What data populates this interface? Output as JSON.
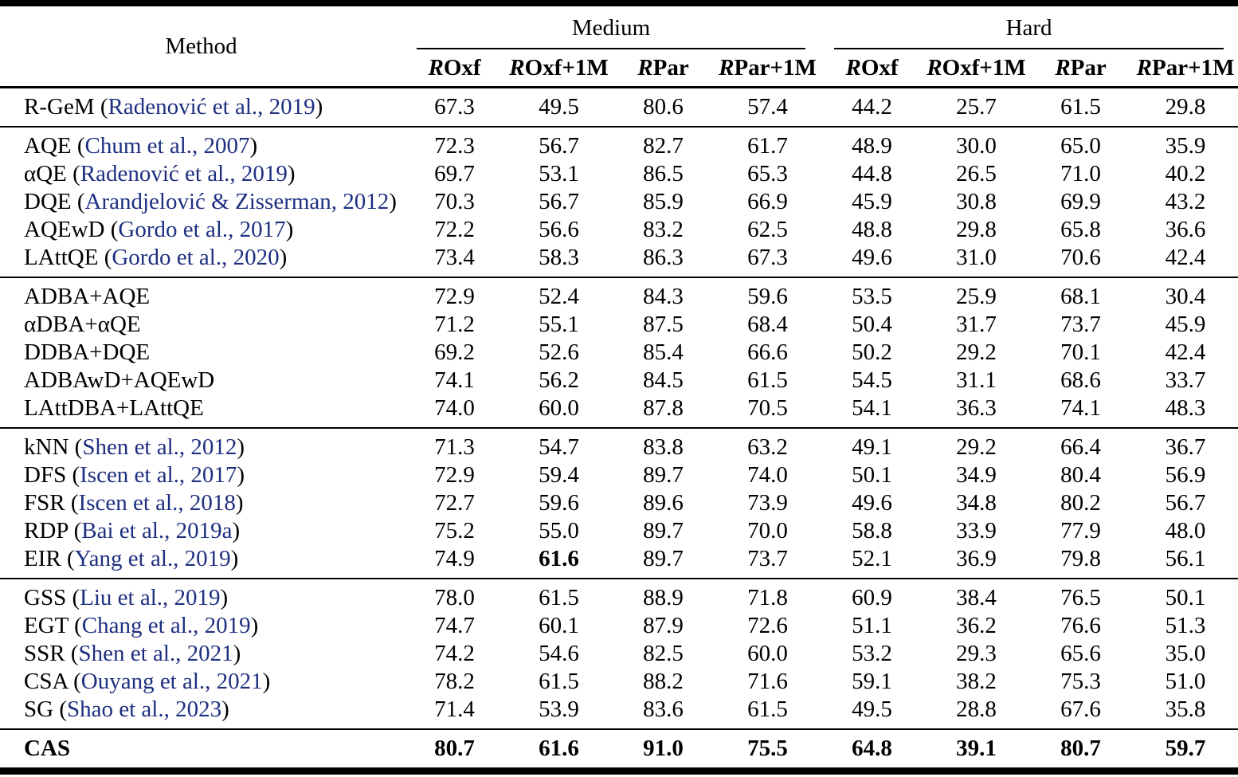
{
  "colors": {
    "text": "#000000",
    "citation_link": "#1e2f80",
    "background": "#ffffff",
    "rules": "#000000"
  },
  "table": {
    "header": {
      "method_label": "Method",
      "groups": [
        {
          "label": "Medium",
          "columns": [
            "ROxf",
            "ROxf+1M",
            "RPar",
            "RPar+1M"
          ]
        },
        {
          "label": "Hard",
          "columns": [
            "ROxf",
            "ROxf+1M",
            "RPar",
            "RPar+1M"
          ]
        }
      ]
    },
    "body_groups": [
      {
        "rows": [
          {
            "method": "R-GeM",
            "citation": "Radenović et al., 2019",
            "values": [
              "67.3",
              "49.5",
              "80.6",
              "57.4",
              "44.2",
              "25.7",
              "61.5",
              "29.8"
            ]
          }
        ]
      },
      {
        "rows": [
          {
            "method": "AQE",
            "citation": "Chum et al., 2007",
            "values": [
              "72.3",
              "56.7",
              "82.7",
              "61.7",
              "48.9",
              "30.0",
              "65.0",
              "35.9"
            ]
          },
          {
            "method": "αQE",
            "citation": "Radenović et al., 2019",
            "values": [
              "69.7",
              "53.1",
              "86.5",
              "65.3",
              "44.8",
              "26.5",
              "71.0",
              "40.2"
            ]
          },
          {
            "method": "DQE",
            "citation": "Arandjelović & Zisserman, 2012",
            "values": [
              "70.3",
              "56.7",
              "85.9",
              "66.9",
              "45.9",
              "30.8",
              "69.9",
              "43.2"
            ]
          },
          {
            "method": "AQEwD",
            "citation": "Gordo et al., 2017",
            "values": [
              "72.2",
              "56.6",
              "83.2",
              "62.5",
              "48.8",
              "29.8",
              "65.8",
              "36.6"
            ]
          },
          {
            "method": "LAttQE",
            "citation": "Gordo et al., 2020",
            "values": [
              "73.4",
              "58.3",
              "86.3",
              "67.3",
              "49.6",
              "31.0",
              "70.6",
              "42.4"
            ]
          }
        ]
      },
      {
        "rows": [
          {
            "method": "ADBA+AQE",
            "citation": null,
            "values": [
              "72.9",
              "52.4",
              "84.3",
              "59.6",
              "53.5",
              "25.9",
              "68.1",
              "30.4"
            ]
          },
          {
            "method": "αDBA+αQE",
            "citation": null,
            "values": [
              "71.2",
              "55.1",
              "87.5",
              "68.4",
              "50.4",
              "31.7",
              "73.7",
              "45.9"
            ]
          },
          {
            "method": "DDBA+DQE",
            "citation": null,
            "values": [
              "69.2",
              "52.6",
              "85.4",
              "66.6",
              "50.2",
              "29.2",
              "70.1",
              "42.4"
            ]
          },
          {
            "method": "ADBAwD+AQEwD",
            "citation": null,
            "values": [
              "74.1",
              "56.2",
              "84.5",
              "61.5",
              "54.5",
              "31.1",
              "68.6",
              "33.7"
            ]
          },
          {
            "method": "LAttDBA+LAttQE",
            "citation": null,
            "values": [
              "74.0",
              "60.0",
              "87.8",
              "70.5",
              "54.1",
              "36.3",
              "74.1",
              "48.3"
            ]
          }
        ]
      },
      {
        "rows": [
          {
            "method": "kNN",
            "citation": "Shen et al., 2012",
            "values": [
              "71.3",
              "54.7",
              "83.8",
              "63.2",
              "49.1",
              "29.2",
              "66.4",
              "36.7"
            ]
          },
          {
            "method": "DFS",
            "citation": "Iscen et al., 2017",
            "values": [
              "72.9",
              "59.4",
              "89.7",
              "74.0",
              "50.1",
              "34.9",
              "80.4",
              "56.9"
            ]
          },
          {
            "method": "FSR",
            "citation": "Iscen et al., 2018",
            "values": [
              "72.7",
              "59.6",
              "89.6",
              "73.9",
              "49.6",
              "34.8",
              "80.2",
              "56.7"
            ]
          },
          {
            "method": "RDP",
            "citation": "Bai et al., 2019a",
            "values": [
              "75.2",
              "55.0",
              "89.7",
              "70.0",
              "58.8",
              "33.9",
              "77.9",
              "48.0"
            ]
          },
          {
            "method": "EIR",
            "citation": "Yang et al., 2019",
            "values": [
              "74.9",
              "61.6",
              "89.7",
              "73.7",
              "52.1",
              "36.9",
              "79.8",
              "56.1"
            ],
            "bold_cols": [
              1
            ]
          }
        ]
      },
      {
        "rows": [
          {
            "method": "GSS",
            "citation": "Liu et al., 2019",
            "values": [
              "78.0",
              "61.5",
              "88.9",
              "71.8",
              "60.9",
              "38.4",
              "76.5",
              "50.1"
            ]
          },
          {
            "method": "EGT",
            "citation": "Chang et al., 2019",
            "values": [
              "74.7",
              "60.1",
              "87.9",
              "72.6",
              "51.1",
              "36.2",
              "76.6",
              "51.3"
            ]
          },
          {
            "method": "SSR",
            "citation": "Shen et al., 2021",
            "values": [
              "74.2",
              "54.6",
              "82.5",
              "60.0",
              "53.2",
              "29.3",
              "65.6",
              "35.0"
            ]
          },
          {
            "method": "CSA",
            "citation": "Ouyang et al., 2021",
            "values": [
              "78.2",
              "61.5",
              "88.2",
              "71.6",
              "59.1",
              "38.2",
              "75.3",
              "51.0"
            ]
          },
          {
            "method": "SG",
            "citation": "Shao et al., 2023",
            "values": [
              "71.4",
              "53.9",
              "83.6",
              "61.5",
              "49.5",
              "28.8",
              "67.6",
              "35.8"
            ]
          }
        ]
      },
      {
        "rows": [
          {
            "method": "CAS",
            "citation": null,
            "bold_method": true,
            "values": [
              "80.7",
              "61.6",
              "91.0",
              "75.5",
              "64.8",
              "39.1",
              "80.7",
              "59.7"
            ],
            "bold_cols": [
              0,
              1,
              2,
              3,
              4,
              5,
              6,
              7
            ]
          }
        ]
      }
    ]
  }
}
